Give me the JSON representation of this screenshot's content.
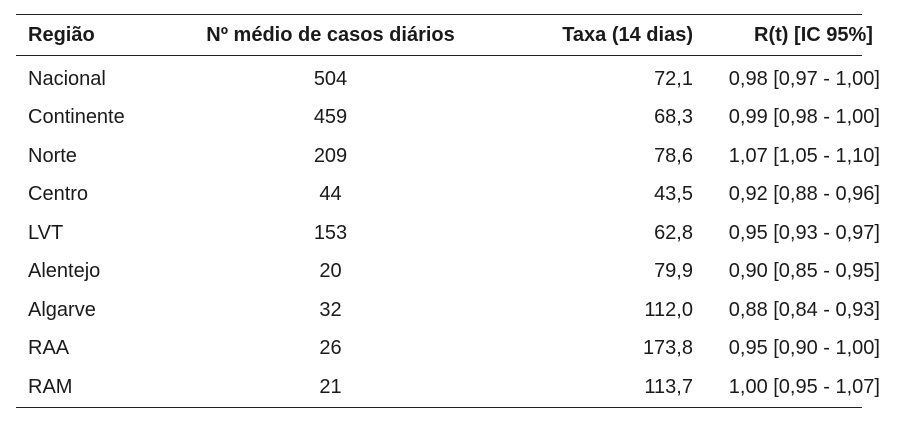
{
  "headers": [
    "Região",
    "Nº médio de casos diários",
    "Taxa (14 dias)",
    "R(t) [IC 95%]"
  ],
  "rows": [
    [
      "Nacional",
      "504",
      "72,1",
      "0,98 [0,97 - 1,00]"
    ],
    [
      "Continente",
      "459",
      "68,3",
      "0,99 [0,98 - 1,00]"
    ],
    [
      "Norte",
      "209",
      "78,6",
      "1,07 [1,05 - 1,10]"
    ],
    [
      "Centro",
      "44",
      "43,5",
      "0,92 [0,88 - 0,96]"
    ],
    [
      "LVT",
      "153",
      "62,8",
      "0,95 [0,93 - 0,97]"
    ],
    [
      "Alentejo",
      "20",
      "79,9",
      "0,90 [0,85 - 0,95]"
    ],
    [
      "Algarve",
      "32",
      "112,0",
      "0,88 [0,84 - 0,93]"
    ],
    [
      "RAA",
      "26",
      "173,8",
      "0,95 [0,90 - 1,00]"
    ],
    [
      "RAM",
      "21",
      "113,7",
      "1,00 [0,95 - 1,07]"
    ]
  ]
}
